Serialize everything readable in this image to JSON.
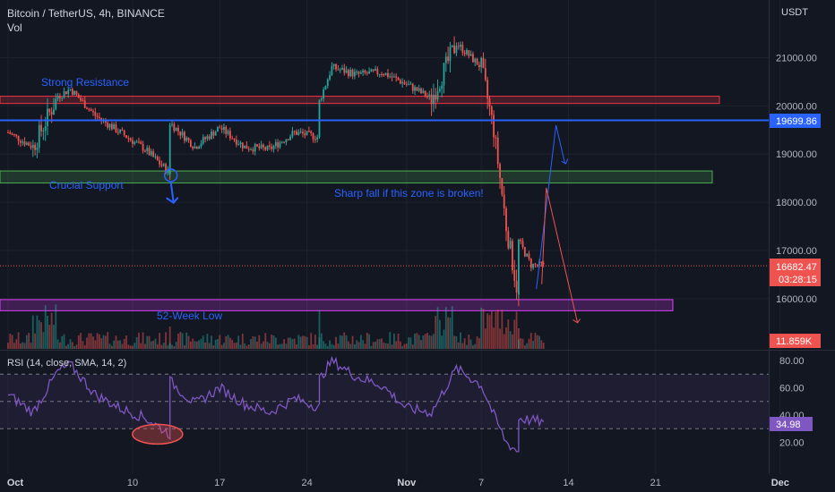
{
  "header": {
    "symbol_title": "Bitcoin / TetherUS, 4h, BINANCE",
    "volume_label": "Vol",
    "currency": "USDT"
  },
  "price_axis": {
    "labels": [
      "21000.00",
      "20000.00",
      "19000.00",
      "18000.00",
      "17000.00",
      "16000.00"
    ],
    "current_price": "16682.47",
    "countdown": "03:28:15",
    "line_price": "19699.86",
    "volume_value": "11.859K"
  },
  "rsi_axis": {
    "labels": [
      "80.00",
      "60.00",
      "40.00",
      "20.00"
    ],
    "current": "34.98"
  },
  "time_axis": {
    "labels": [
      "Oct",
      "10",
      "17",
      "24",
      "Nov",
      "7",
      "14",
      "21",
      "Dec"
    ]
  },
  "annotations": {
    "strong_resistance": "Strong Resistance",
    "crucial_support": "Crucial Support",
    "sharp_fall": "Sharp fall if this zone is broken!",
    "week_low": "52-Week Low"
  },
  "rsi_title": "RSI (14, close, SMA, 14, 2)",
  "colors": {
    "background": "#131722",
    "bull": "#26a69a",
    "bear": "#ef5350",
    "rsi_line": "#7e57c2",
    "blue_line": "#2962ff",
    "resistance_zone": "#f23645",
    "support_zone": "#4caf50",
    "low_zone": "#e040fb"
  },
  "chart_data": {
    "type": "candlestick",
    "title": "Bitcoin / TetherUS, 4h, BINANCE",
    "x_range": [
      "2022-09-30",
      "2022-12-01"
    ],
    "y_range": [
      15600,
      21700
    ],
    "y_ticks": [
      16000,
      17000,
      18000,
      19000,
      20000,
      21000
    ],
    "close_path": [
      {
        "date": "2022-09-30",
        "price": 19450
      },
      {
        "date": "2022-10-02",
        "price": 19150
      },
      {
        "date": "2022-10-04",
        "price": 20200
      },
      {
        "date": "2022-10-05",
        "price": 20350
      },
      {
        "date": "2022-10-07",
        "price": 19800
      },
      {
        "date": "2022-10-09",
        "price": 19450
      },
      {
        "date": "2022-10-11",
        "price": 19100
      },
      {
        "date": "2022-10-13",
        "price": 18600
      },
      {
        "date": "2022-10-13",
        "price": 19650
      },
      {
        "date": "2022-10-15",
        "price": 19150
      },
      {
        "date": "2022-10-17",
        "price": 19550
      },
      {
        "date": "2022-10-19",
        "price": 19150
      },
      {
        "date": "2022-10-21",
        "price": 19100
      },
      {
        "date": "2022-10-23",
        "price": 19450
      },
      {
        "date": "2022-10-25",
        "price": 19350
      },
      {
        "date": "2022-10-25",
        "price": 20100
      },
      {
        "date": "2022-10-26",
        "price": 20800
      },
      {
        "date": "2022-10-28",
        "price": 20650
      },
      {
        "date": "2022-10-30",
        "price": 20700
      },
      {
        "date": "2022-11-01",
        "price": 20450
      },
      {
        "date": "2022-11-03",
        "price": 20150
      },
      {
        "date": "2022-11-05",
        "price": 21300
      },
      {
        "date": "2022-11-07",
        "price": 20800
      },
      {
        "date": "2022-11-08",
        "price": 19500
      },
      {
        "date": "2022-11-09",
        "price": 17500
      },
      {
        "date": "2022-11-10",
        "price": 16000
      },
      {
        "date": "2022-11-10",
        "price": 17200
      },
      {
        "date": "2022-11-11",
        "price": 16700
      },
      {
        "date": "2022-11-12",
        "price": 16682.47
      }
    ],
    "levels": {
      "resistance_zone": [
        20050,
        20200
      ],
      "support_zone": [
        18400,
        18650
      ],
      "horizontal_line": 19699.86,
      "week_low_zone": [
        15750,
        15980
      ]
    },
    "volume": {
      "current": "11.859K"
    },
    "rsi": {
      "period": 14,
      "y_ticks": [
        20,
        40,
        60,
        80
      ],
      "bands": [
        30,
        70
      ],
      "current": 34.98,
      "path": [
        {
          "date": "2022-09-30",
          "value": 55
        },
        {
          "date": "2022-10-02",
          "value": 42
        },
        {
          "date": "2022-10-04",
          "value": 72
        },
        {
          "date": "2022-10-05",
          "value": 77
        },
        {
          "date": "2022-10-07",
          "value": 55
        },
        {
          "date": "2022-10-09",
          "value": 45
        },
        {
          "date": "2022-10-11",
          "value": 38
        },
        {
          "date": "2022-10-13",
          "value": 26
        },
        {
          "date": "2022-10-13",
          "value": 65
        },
        {
          "date": "2022-10-15",
          "value": 48
        },
        {
          "date": "2022-10-17",
          "value": 60
        },
        {
          "date": "2022-10-19",
          "value": 48
        },
        {
          "date": "2022-10-21",
          "value": 42
        },
        {
          "date": "2022-10-23",
          "value": 52
        },
        {
          "date": "2022-10-25",
          "value": 46
        },
        {
          "date": "2022-10-25",
          "value": 66
        },
        {
          "date": "2022-10-26",
          "value": 80
        },
        {
          "date": "2022-10-28",
          "value": 68
        },
        {
          "date": "2022-10-30",
          "value": 62
        },
        {
          "date": "2022-11-01",
          "value": 45
        },
        {
          "date": "2022-11-03",
          "value": 42
        },
        {
          "date": "2022-11-05",
          "value": 74
        },
        {
          "date": "2022-11-07",
          "value": 62
        },
        {
          "date": "2022-11-08",
          "value": 40
        },
        {
          "date": "2022-11-09",
          "value": 20
        },
        {
          "date": "2022-11-10",
          "value": 13
        },
        {
          "date": "2022-11-10",
          "value": 38
        },
        {
          "date": "2022-11-11",
          "value": 36
        },
        {
          "date": "2022-11-12",
          "value": 34.98
        }
      ]
    }
  }
}
